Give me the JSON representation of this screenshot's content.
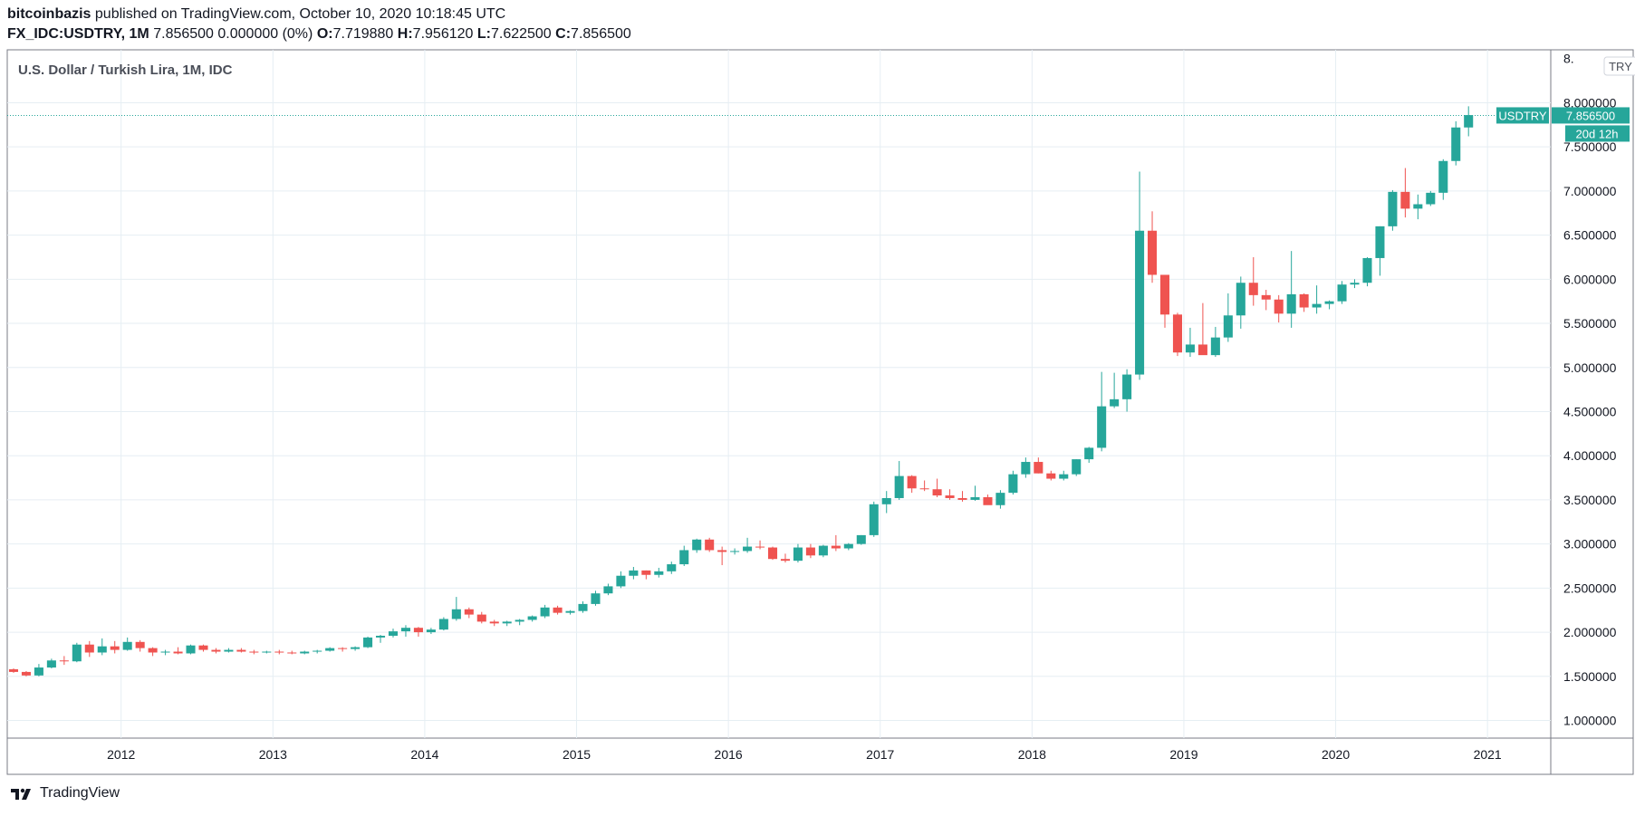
{
  "header": {
    "publisher": "bitcoinbazis",
    "published_text": "published on TradingView.com, October 10, 2020 10:18:45 UTC",
    "symbol": "FX_IDC:USDTRY, 1M",
    "price_change": "7.856500 0.000000 (0%)",
    "o_label": "O:",
    "o_value": "7.719880",
    "h_label": "H:",
    "h_value": "7.956120",
    "l_label": "L:",
    "l_value": "7.622500",
    "c_label": "C:",
    "c_value": "7.856500"
  },
  "footer": {
    "brand": "TradingView"
  },
  "colors": {
    "up": "#26a69a",
    "down": "#ef5350",
    "grid": "#e6eef3",
    "axis_text": "#131722",
    "price_line": "#26a69a"
  },
  "chart_data": {
    "type": "candlestick",
    "title": "U.S. Dollar / Turkish Lira, 1M, IDC",
    "currency_label": "TRY",
    "last_price_tag": {
      "symbol": "USDTRY",
      "value": "7.856500",
      "countdown": "20d 12h",
      "price": 7.8565
    },
    "ylim": [
      0.8,
      8.6
    ],
    "y_ticks": [
      1.0,
      1.5,
      2.0,
      2.5,
      3.0,
      3.5,
      4.0,
      4.5,
      5.0,
      5.5,
      6.0,
      6.5,
      7.0,
      7.5,
      8.0
    ],
    "y_tick_labels": [
      "1.000000",
      "1.500000",
      "2.000000",
      "2.500000",
      "3.000000",
      "3.500000",
      "4.000000",
      "4.500000",
      "5.000000",
      "5.500000",
      "6.000000",
      "6.500000",
      "7.000000",
      "7.500000",
      "8.000000"
    ],
    "y_top_partial_label": "8.",
    "xlim_months": [
      "2011-04",
      "2021-06"
    ],
    "x_ticks": [
      "2012",
      "2013",
      "2014",
      "2015",
      "2016",
      "2017",
      "2018",
      "2019",
      "2020",
      "2021"
    ],
    "grid": true,
    "first_month": "2011-04",
    "candles": [
      [
        1.58,
        1.59,
        1.54,
        1.55
      ],
      [
        1.55,
        1.56,
        1.5,
        1.51
      ],
      [
        1.51,
        1.64,
        1.5,
        1.6
      ],
      [
        1.6,
        1.7,
        1.59,
        1.68
      ],
      [
        1.68,
        1.73,
        1.63,
        1.67
      ],
      [
        1.67,
        1.88,
        1.66,
        1.86
      ],
      [
        1.86,
        1.9,
        1.72,
        1.77
      ],
      [
        1.77,
        1.93,
        1.74,
        1.84
      ],
      [
        1.84,
        1.9,
        1.76,
        1.8
      ],
      [
        1.8,
        1.94,
        1.79,
        1.89
      ],
      [
        1.89,
        1.91,
        1.78,
        1.82
      ],
      [
        1.82,
        1.83,
        1.73,
        1.77
      ],
      [
        1.77,
        1.8,
        1.74,
        1.78
      ],
      [
        1.78,
        1.83,
        1.75,
        1.76
      ],
      [
        1.76,
        1.86,
        1.75,
        1.85
      ],
      [
        1.85,
        1.86,
        1.78,
        1.8
      ],
      [
        1.8,
        1.82,
        1.76,
        1.78
      ],
      [
        1.78,
        1.82,
        1.77,
        1.8
      ],
      [
        1.8,
        1.82,
        1.77,
        1.78
      ],
      [
        1.78,
        1.8,
        1.75,
        1.77
      ],
      [
        1.77,
        1.79,
        1.76,
        1.78
      ],
      [
        1.78,
        1.8,
        1.75,
        1.77
      ],
      [
        1.77,
        1.79,
        1.75,
        1.76
      ],
      [
        1.76,
        1.79,
        1.75,
        1.78
      ],
      [
        1.78,
        1.8,
        1.76,
        1.79
      ],
      [
        1.79,
        1.83,
        1.78,
        1.82
      ],
      [
        1.82,
        1.83,
        1.78,
        1.81
      ],
      [
        1.81,
        1.84,
        1.79,
        1.83
      ],
      [
        1.83,
        1.95,
        1.82,
        1.94
      ],
      [
        1.94,
        1.97,
        1.88,
        1.96
      ],
      [
        1.96,
        2.04,
        1.94,
        2.01
      ],
      [
        2.01,
        2.08,
        1.95,
        2.05
      ],
      [
        2.05,
        2.06,
        1.95,
        2.0
      ],
      [
        2.0,
        2.05,
        1.98,
        2.03
      ],
      [
        2.03,
        2.17,
        2.02,
        2.15
      ],
      [
        2.15,
        2.4,
        2.13,
        2.26
      ],
      [
        2.26,
        2.28,
        2.16,
        2.2
      ],
      [
        2.2,
        2.23,
        2.1,
        2.12
      ],
      [
        2.12,
        2.14,
        2.07,
        2.1
      ],
      [
        2.1,
        2.13,
        2.07,
        2.12
      ],
      [
        2.12,
        2.15,
        2.08,
        2.14
      ],
      [
        2.14,
        2.19,
        2.12,
        2.18
      ],
      [
        2.18,
        2.31,
        2.16,
        2.28
      ],
      [
        2.28,
        2.3,
        2.2,
        2.22
      ],
      [
        2.22,
        2.25,
        2.2,
        2.24
      ],
      [
        2.24,
        2.35,
        2.22,
        2.32
      ],
      [
        2.32,
        2.47,
        2.3,
        2.44
      ],
      [
        2.44,
        2.55,
        2.42,
        2.52
      ],
      [
        2.52,
        2.69,
        2.5,
        2.64
      ],
      [
        2.64,
        2.74,
        2.6,
        2.7
      ],
      [
        2.7,
        2.7,
        2.6,
        2.65
      ],
      [
        2.65,
        2.73,
        2.62,
        2.69
      ],
      [
        2.69,
        2.8,
        2.66,
        2.77
      ],
      [
        2.77,
        2.98,
        2.75,
        2.93
      ],
      [
        2.93,
        3.06,
        2.9,
        3.05
      ],
      [
        3.05,
        3.07,
        2.91,
        2.93
      ],
      [
        2.93,
        2.97,
        2.76,
        2.91
      ],
      [
        2.91,
        2.95,
        2.88,
        2.92
      ],
      [
        2.92,
        3.07,
        2.9,
        2.97
      ],
      [
        2.97,
        3.04,
        2.94,
        2.96
      ],
      [
        2.96,
        2.97,
        2.82,
        2.83
      ],
      [
        2.83,
        2.89,
        2.79,
        2.81
      ],
      [
        2.81,
        3.0,
        2.79,
        2.96
      ],
      [
        2.96,
        3.0,
        2.84,
        2.87
      ],
      [
        2.87,
        2.99,
        2.85,
        2.98
      ],
      [
        2.98,
        3.1,
        2.92,
        2.95
      ],
      [
        2.95,
        3.01,
        2.93,
        3.0
      ],
      [
        3.0,
        3.1,
        2.99,
        3.1
      ],
      [
        3.1,
        3.48,
        3.08,
        3.45
      ],
      [
        3.45,
        3.6,
        3.35,
        3.52
      ],
      [
        3.52,
        3.94,
        3.5,
        3.77
      ],
      [
        3.77,
        3.78,
        3.58,
        3.63
      ],
      [
        3.63,
        3.72,
        3.6,
        3.62
      ],
      [
        3.62,
        3.74,
        3.53,
        3.55
      ],
      [
        3.55,
        3.62,
        3.5,
        3.52
      ],
      [
        3.52,
        3.6,
        3.48,
        3.5
      ],
      [
        3.5,
        3.66,
        3.49,
        3.53
      ],
      [
        3.53,
        3.56,
        3.45,
        3.44
      ],
      [
        3.44,
        3.61,
        3.4,
        3.58
      ],
      [
        3.58,
        3.83,
        3.56,
        3.79
      ],
      [
        3.79,
        3.98,
        3.75,
        3.93
      ],
      [
        3.93,
        3.98,
        3.8,
        3.8
      ],
      [
        3.8,
        3.83,
        3.72,
        3.74
      ],
      [
        3.74,
        3.83,
        3.72,
        3.79
      ],
      [
        3.79,
        3.96,
        3.77,
        3.96
      ],
      [
        3.96,
        4.1,
        3.92,
        4.09
      ],
      [
        4.09,
        4.95,
        4.05,
        4.56
      ],
      [
        4.56,
        4.94,
        4.54,
        4.64
      ],
      [
        4.64,
        4.98,
        4.5,
        4.92
      ],
      [
        4.92,
        7.22,
        4.86,
        6.55
      ],
      [
        6.55,
        6.77,
        5.96,
        6.05
      ],
      [
        6.05,
        6.05,
        5.45,
        5.6
      ],
      [
        5.6,
        5.62,
        5.13,
        5.17
      ],
      [
        5.17,
        5.45,
        5.12,
        5.26
      ],
      [
        5.26,
        5.73,
        5.18,
        5.14
      ],
      [
        5.14,
        5.46,
        5.12,
        5.34
      ],
      [
        5.34,
        5.84,
        5.29,
        5.59
      ],
      [
        5.59,
        6.03,
        5.44,
        5.96
      ],
      [
        5.96,
        6.25,
        5.7,
        5.82
      ],
      [
        5.82,
        5.88,
        5.65,
        5.77
      ],
      [
        5.77,
        5.82,
        5.51,
        5.61
      ],
      [
        5.61,
        6.32,
        5.45,
        5.83
      ],
      [
        5.83,
        5.84,
        5.63,
        5.68
      ],
      [
        5.68,
        5.93,
        5.61,
        5.72
      ],
      [
        5.72,
        5.76,
        5.66,
        5.75
      ],
      [
        5.75,
        5.98,
        5.72,
        5.94
      ],
      [
        5.94,
        6.0,
        5.9,
        5.96
      ],
      [
        5.96,
        6.25,
        5.92,
        6.24
      ],
      [
        6.24,
        6.6,
        6.04,
        6.6
      ],
      [
        6.6,
        7.01,
        6.55,
        6.99
      ],
      [
        6.99,
        7.26,
        6.7,
        6.8
      ],
      [
        6.8,
        6.96,
        6.68,
        6.85
      ],
      [
        6.85,
        7.0,
        6.83,
        6.98
      ],
      [
        6.98,
        7.36,
        6.9,
        7.34
      ],
      [
        7.34,
        7.79,
        7.29,
        7.72
      ],
      [
        7.72,
        7.96,
        7.62,
        7.86
      ]
    ]
  }
}
